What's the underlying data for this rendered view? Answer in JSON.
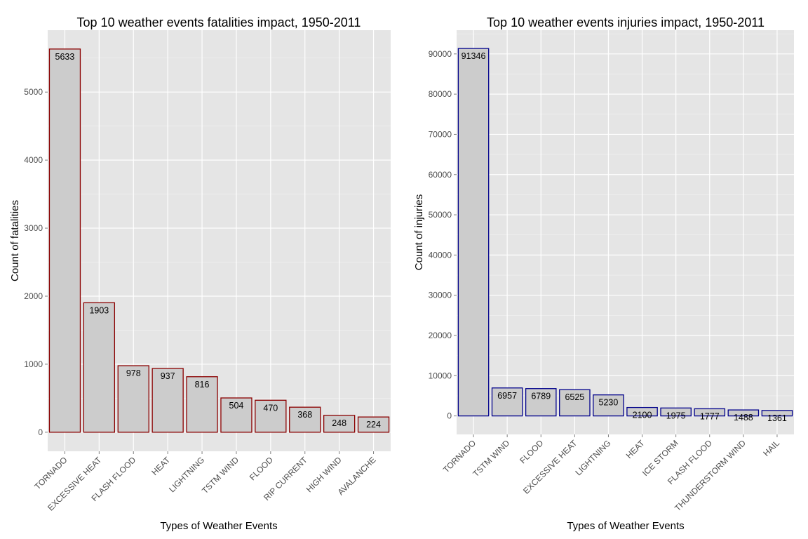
{
  "chart_data": [
    {
      "type": "bar",
      "title": "Top 10 weather events fatalities impact, 1950-2011",
      "xlabel": "Types of Weather Events",
      "ylabel": "Count of fatalities",
      "categories": [
        "TORNADO",
        "EXCESSIVE HEAT",
        "FLASH FLOOD",
        "HEAT",
        "LIGHTNING",
        "TSTM WIND",
        "FLOOD",
        "RIP CURRENT",
        "HIGH WIND",
        "AVALANCHE"
      ],
      "values": [
        5633,
        1903,
        978,
        937,
        816,
        504,
        470,
        368,
        248,
        224
      ],
      "ylim": [
        -280,
        5910
      ],
      "yticks": [
        0,
        1000,
        2000,
        3000,
        4000,
        5000
      ],
      "grid": true,
      "bar_fill": "#cccccc",
      "bar_stroke": "#8b0000"
    },
    {
      "type": "bar",
      "title": "Top 10 weather events injuries impact, 1950-2011",
      "xlabel": "Types of Weather Events",
      "ylabel": "Count of injuries",
      "categories": [
        "TORNADO",
        "TSTM WIND",
        "FLOOD",
        "EXCESSIVE HEAT",
        "LIGHTNING",
        "HEAT",
        "ICE STORM",
        "FLASH FLOOD",
        "THUNDERSTORM WIND",
        "HAIL"
      ],
      "values": [
        91346,
        6957,
        6789,
        6525,
        5230,
        2100,
        1975,
        1777,
        1488,
        1361
      ],
      "ylim": [
        -4600,
        95900
      ],
      "yticks": [
        0,
        10000,
        20000,
        30000,
        40000,
        50000,
        60000,
        70000,
        80000,
        90000
      ],
      "grid": true,
      "bar_fill": "#cccccc",
      "bar_stroke": "#00008b"
    }
  ]
}
